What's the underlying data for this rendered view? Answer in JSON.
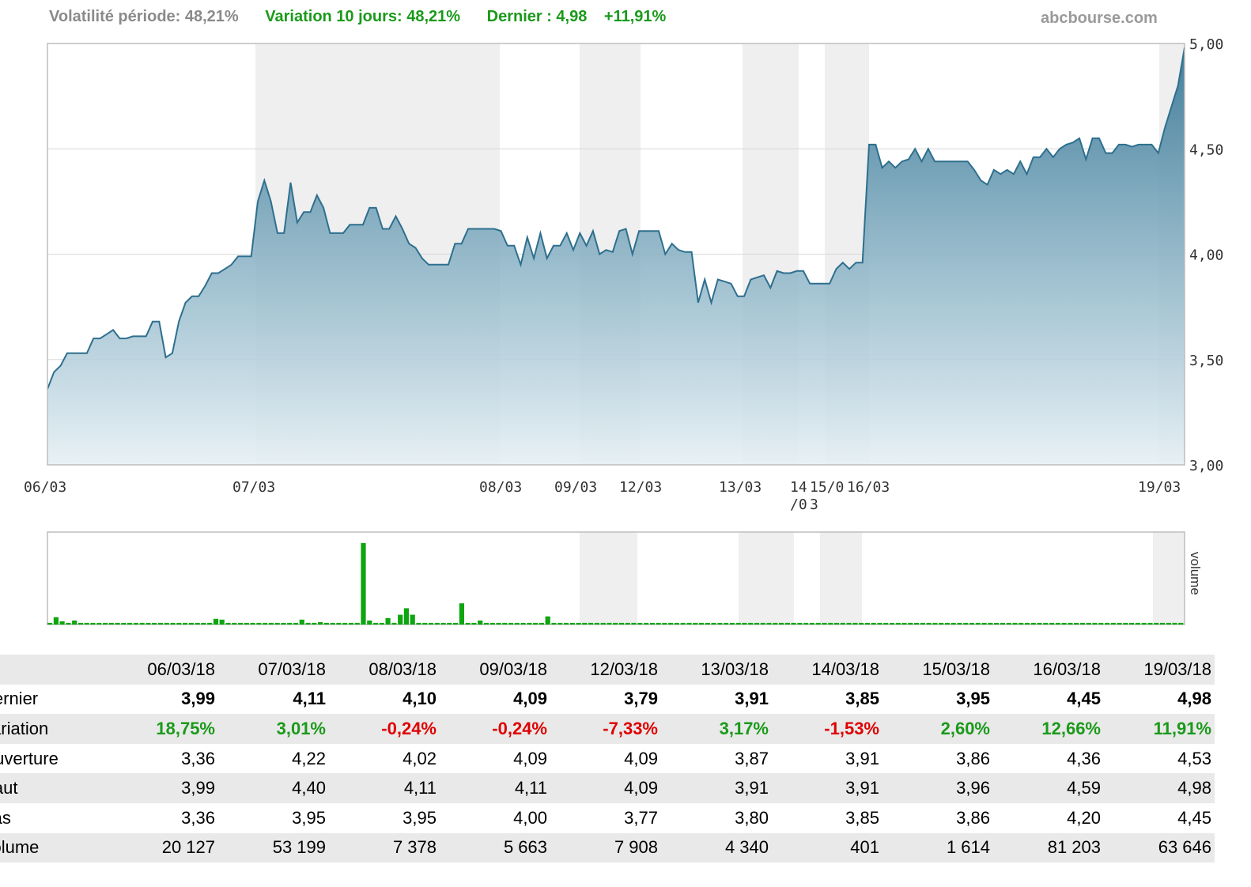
{
  "header": {
    "volatility": "Volatilité période: 48,21%",
    "variation10": "Variation 10 jours: 48,21%",
    "last": "Dernier : 4,98",
    "last_change": "+11,91%",
    "site": "abcbourse.com"
  },
  "chart_data": [
    {
      "type": "area",
      "ylim": [
        3.0,
        5.0
      ],
      "yticks": [
        "3,00",
        "3,50",
        "4,00",
        "4,50",
        "5,00"
      ],
      "x_tick_labels": [
        "06/03",
        "07/03",
        "08/03",
        "09/03",
        "12/03",
        "13/03",
        "14/0 /0",
        "15/0 3",
        "16/03",
        "19/03"
      ],
      "x_tick_lines": [
        [
          "06/03"
        ],
        [
          "07/03"
        ],
        [
          "08/03"
        ],
        [
          "09/03"
        ],
        [
          "12/03"
        ],
        [
          "13/03"
        ],
        [
          "14",
          "/0"
        ],
        [
          "15/0",
          "3"
        ],
        [
          "16/03"
        ],
        [
          "19/03"
        ]
      ],
      "series_color": "#2e6f8e",
      "values": [
        3.36,
        3.44,
        3.47,
        3.53,
        3.53,
        3.53,
        3.53,
        3.6,
        3.6,
        3.62,
        3.64,
        3.6,
        3.6,
        3.61,
        3.61,
        3.61,
        3.68,
        3.68,
        3.51,
        3.53,
        3.68,
        3.77,
        3.8,
        3.8,
        3.85,
        3.91,
        3.91,
        3.93,
        3.95,
        3.99,
        3.99,
        3.99,
        4.25,
        4.35,
        4.25,
        4.1,
        4.1,
        4.34,
        4.15,
        4.2,
        4.2,
        4.28,
        4.22,
        4.1,
        4.1,
        4.1,
        4.14,
        4.14,
        4.14,
        4.22,
        4.22,
        4.12,
        4.12,
        4.18,
        4.12,
        4.05,
        4.03,
        3.98,
        3.95,
        3.95,
        3.95,
        3.95,
        4.05,
        4.05,
        4.12,
        4.12,
        4.12,
        4.12,
        4.12,
        4.11,
        4.04,
        4.04,
        3.95,
        4.08,
        3.98,
        4.1,
        3.98,
        4.04,
        4.04,
        4.1,
        4.02,
        4.1,
        4.04,
        4.11,
        4.0,
        4.02,
        4.01,
        4.11,
        4.12,
        4.0,
        4.11,
        4.11,
        4.11,
        4.11,
        4.0,
        4.05,
        4.02,
        4.01,
        4.01,
        3.77,
        3.88,
        3.77,
        3.88,
        3.87,
        3.86,
        3.8,
        3.8,
        3.88,
        3.89,
        3.9,
        3.84,
        3.92,
        3.91,
        3.91,
        3.92,
        3.92,
        3.86,
        3.86,
        3.86,
        3.86,
        3.93,
        3.96,
        3.93,
        3.96,
        3.96,
        4.52,
        4.52,
        4.41,
        4.44,
        4.41,
        4.44,
        4.45,
        4.5,
        4.44,
        4.5,
        4.44,
        4.44,
        4.44,
        4.44,
        4.44,
        4.44,
        4.4,
        4.35,
        4.33,
        4.4,
        4.38,
        4.4,
        4.38,
        4.44,
        4.38,
        4.46,
        4.46,
        4.5,
        4.46,
        4.5,
        4.52,
        4.53,
        4.55,
        4.45,
        4.55,
        4.55,
        4.48,
        4.48,
        4.52,
        4.52,
        4.51,
        4.52,
        4.52,
        4.52,
        4.48,
        4.6,
        4.7,
        4.8,
        4.98
      ]
    },
    {
      "type": "bar",
      "label": "volume",
      "series_color": "#0ea60e",
      "values": [
        2,
        9,
        4,
        2,
        5,
        2,
        2,
        2,
        2,
        2,
        2,
        2,
        2,
        2,
        2,
        2,
        2,
        2,
        2,
        2,
        2,
        2,
        2,
        2,
        2,
        2,
        2,
        7,
        6,
        2,
        2,
        2,
        2,
        2,
        2,
        2,
        2,
        2,
        2,
        2,
        2,
        6,
        2,
        2,
        3,
        2,
        2,
        2,
        2,
        2,
        2,
        100,
        5,
        2,
        2,
        8,
        2,
        12,
        20,
        12,
        2,
        2,
        2,
        2,
        2,
        2,
        2,
        26,
        2,
        2,
        5,
        2,
        2,
        2,
        2,
        2,
        2,
        2,
        2,
        2,
        2,
        10,
        2,
        2,
        2,
        2,
        2,
        2,
        2,
        2,
        2,
        2,
        2,
        2,
        2,
        2,
        2,
        2,
        2,
        2,
        2,
        2,
        2,
        2,
        2,
        2,
        2,
        2,
        2,
        2,
        2,
        2,
        2,
        2,
        2,
        2,
        2,
        2,
        2,
        2,
        2,
        2,
        2,
        2,
        2,
        2,
        2,
        2,
        2,
        2,
        2,
        2,
        2,
        2,
        2,
        2,
        2,
        2,
        2,
        2,
        2,
        2,
        2,
        2,
        2,
        2,
        2,
        2,
        2,
        2,
        2,
        2,
        2,
        2,
        2,
        2,
        2,
        2,
        2,
        2,
        2,
        2,
        2,
        2,
        2,
        2,
        2,
        2,
        2,
        2,
        2,
        2,
        2,
        2,
        2,
        2,
        2,
        2,
        2,
        2,
        2,
        2,
        2,
        2,
        2
      ]
    }
  ],
  "table": {
    "dates": [
      "06/03/18",
      "07/03/18",
      "08/03/18",
      "09/03/18",
      "12/03/18",
      "13/03/18",
      "14/03/18",
      "15/03/18",
      "16/03/18",
      "19/03/18"
    ],
    "rows": [
      {
        "label": "Dernier",
        "values": [
          "3,99",
          "4,11",
          "4,10",
          "4,09",
          "3,79",
          "3,91",
          "3,85",
          "3,95",
          "4,45",
          "4,98"
        ]
      },
      {
        "label": "Variation",
        "values": [
          "18,75%",
          "3,01%",
          "-0,24%",
          "-0,24%",
          "-7,33%",
          "3,17%",
          "-1,53%",
          "2,60%",
          "12,66%",
          "11,91%"
        ]
      },
      {
        "label": "Ouverture",
        "values": [
          "3,36",
          "4,22",
          "4,02",
          "4,09",
          "4,09",
          "3,87",
          "3,91",
          "3,86",
          "4,36",
          "4,53"
        ]
      },
      {
        "label": "Haut",
        "values": [
          "3,99",
          "4,40",
          "4,11",
          "4,11",
          "4,09",
          "3,91",
          "3,91",
          "3,96",
          "4,59",
          "4,98"
        ]
      },
      {
        "label": "Bas",
        "values": [
          "3,36",
          "3,95",
          "3,95",
          "4,00",
          "3,77",
          "3,80",
          "3,85",
          "3,86",
          "4,20",
          "4,45"
        ]
      },
      {
        "label": "Volume",
        "values": [
          "20 127",
          "53 199",
          "7 378",
          "5 663",
          "7 908",
          "4 340",
          "401",
          "1 614",
          "81 203",
          "63 646"
        ]
      }
    ]
  }
}
